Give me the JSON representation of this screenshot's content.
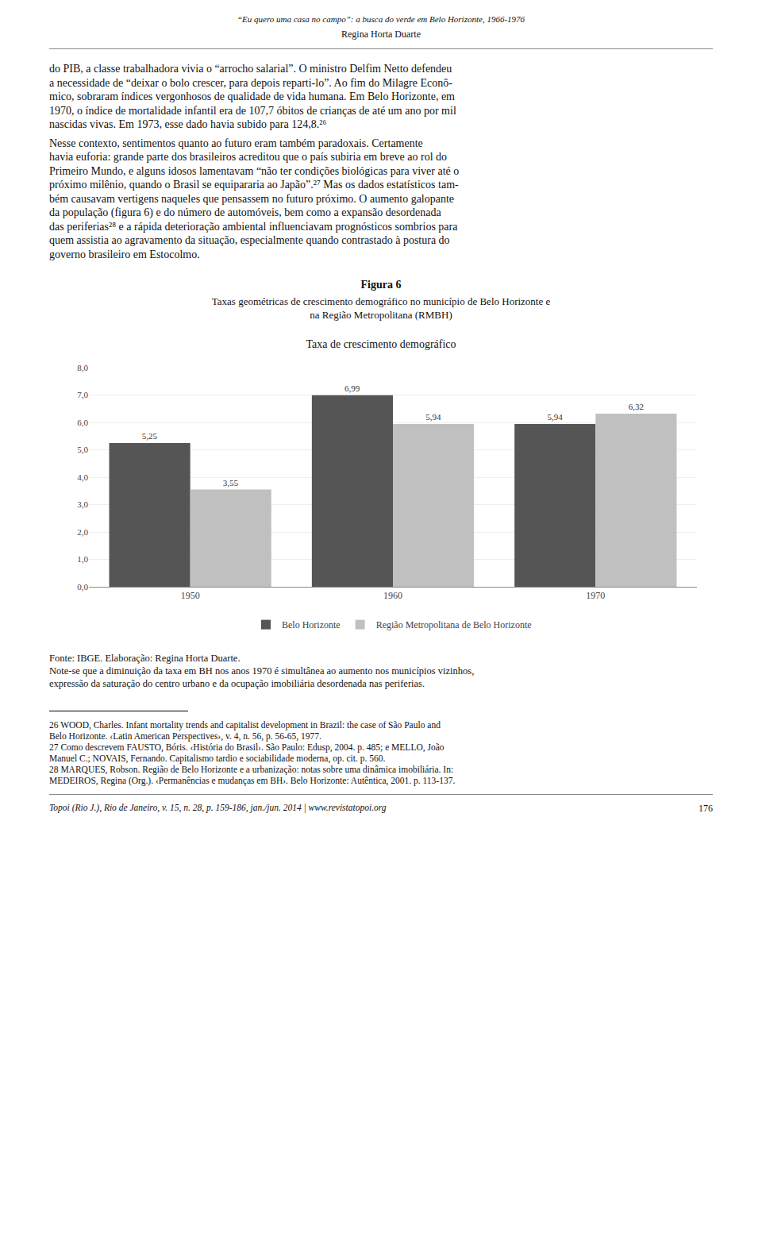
{
  "page_title": "“Eu quero uma casa no campo”: a busca do verde em Belo Horizonte, 1966-1976",
  "author": "Regina Horta Duarte",
  "body_lines": [
    "do PIB, a classe trabalhadora vivia o “arrocho salarial”. O ministro Delfim Netto defendeu",
    "a necessidade de “deixar o bolo crescer, para depois reparti-lo”. Ao fim do Milagre Econô-",
    "mico, sobraram índices vergonhosos de qualidade de vida humana. Em Belo Horizonte, em",
    "1970, o índice de mortalidade infantil era de 107,7 óbitos de crianças de até um ano por mil",
    "nascidas vivas. Em 1973, esse dado havia subido para 124,8.²⁶"
  ],
  "body_lines2": [
    "Nesse contexto, sentimentos quanto ao futuro eram também paradoxais. Certamente",
    "havia euforia: grande parte dos brasileiros acreditou que o país subiria em breve ao rol do",
    "Primeiro Mundo, e alguns idosos lamentavam “não ter condições biológicas para viver até o",
    "próximo milênio, quando o Brasil se equipararia ao Japão”.²⁷ Mas os dados estatísticos tam-",
    "bém causavam vertigens naqueles que pensassem no futuro próximo. O aumento galopante",
    "da população (figura 6) e do número de automóveis, bem como a expansão desordenada",
    "das periferias²⁸ e a rápida deterioração ambiental influenciavam prognósticos sombrios para",
    "quem assistia ao agravamento da situação, especialmente quando contrastado à postura do",
    "governo brasileiro em Estocolmo."
  ],
  "figure_title": "Figura 6",
  "figure_subtitle_1": "Taxas geométricas de crescimento demográfico no município de Belo Horizonte e",
  "figure_subtitle_2": "na Região Metropolitana (RMBH)",
  "chart_data": {
    "type": "bar",
    "title": "Taxa de crescimento demográfico",
    "categories": [
      "1950",
      "1960",
      "1970"
    ],
    "series": [
      {
        "name": "Belo Horizonte",
        "color": "#555555",
        "values": [
          5.25,
          6.99,
          5.94
        ],
        "value_labels": [
          "5,25",
          "6,99",
          "5,94"
        ]
      },
      {
        "name": "Região Metropolitana de Belo Horizonte",
        "color": "#c0c0c0",
        "values": [
          3.55,
          5.94,
          6.32
        ],
        "value_labels": [
          "3,55",
          "5,94",
          "6,32"
        ]
      }
    ],
    "ylim": [
      0,
      8.0
    ],
    "yticks": [
      {
        "value": 0.0,
        "label": "0,0"
      },
      {
        "value": 1.0,
        "label": "1,0"
      },
      {
        "value": 2.0,
        "label": "2,0"
      },
      {
        "value": 3.0,
        "label": "3,0"
      },
      {
        "value": 4.0,
        "label": "4,0"
      },
      {
        "value": 5.0,
        "label": "5,0"
      },
      {
        "value": 6.0,
        "label": "6,0"
      },
      {
        "value": 7.0,
        "label": "7,0"
      },
      {
        "value": 8.0,
        "label": "8,0"
      }
    ],
    "grid": true,
    "data_labels": true,
    "legend": "bottom"
  },
  "fonte": "Fonte: IBGE. Elaboração: Regina Horta Duarte.",
  "note_lines": [
    "Note-se que a diminuição da taxa em BH nos anos 1970 é simultânea ao aumento nos municípios vizinhos,",
    "expressão da saturação do centro urbano e da ocupação imobiliária desordenada nas periferias."
  ],
  "footnotes": [
    "26 WOOD, Charles. Infant mortality trends and capitalist development in Brazil: the case of São Paulo and",
    "Belo Horizonte. ‹Latin American Perspectives›, v. 4, n. 56, p. 56-65, 1977.",
    "27 Como descrevem FAUSTO, Bóris. ‹História do Brasil›. São Paulo: Edusp, 2004. p. 485; e MELLO, João",
    "Manuel C.; NOVAIS, Fernando. Capitalismo tardio e sociabilidade moderna, op. cit. p. 560.",
    "28 MARQUES, Robson. Região de Belo Horizonte e a urbanização: notas sobre uma dinâmica imobiliária. In:",
    "MEDEIROS, Regina (Org.). ‹Permanências e mudanças em BH›. Belo Horizonte: Autêntica, 2001. p. 113-137."
  ],
  "journal_footer": "Topoi (Rio J.), Rio de Janeiro, v. 15, n. 28, p. 159-186, jan./jun. 2014  |  www.revistatopoi.org",
  "page_number": "176"
}
